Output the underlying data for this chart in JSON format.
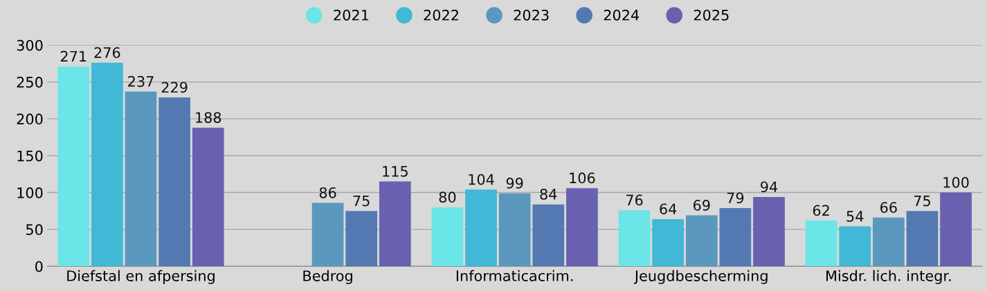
{
  "chart_data": {
    "type": "bar",
    "categories": [
      "Diefstal en afpersing",
      "Bedrog",
      "Informaticacrim.",
      "Jeugdbescherming",
      "Misdr. lich. integr."
    ],
    "series": [
      {
        "name": "2021",
        "color": "#6ce5e8",
        "values": [
          271,
          null,
          80,
          76,
          62
        ]
      },
      {
        "name": "2022",
        "color": "#41b8d5",
        "values": [
          276,
          null,
          104,
          64,
          54
        ]
      },
      {
        "name": "2023",
        "color": "#5a98bd",
        "values": [
          237,
          86,
          99,
          69,
          66
        ]
      },
      {
        "name": "2024",
        "color": "#5479b2",
        "values": [
          229,
          75,
          84,
          79,
          75
        ]
      },
      {
        "name": "2025",
        "color": "#6761b0",
        "values": [
          188,
          115,
          106,
          94,
          100
        ]
      }
    ],
    "ylim": [
      0,
      300
    ],
    "yticks": [
      0,
      50,
      100,
      150,
      200,
      250,
      300
    ],
    "grid": "y",
    "legend": "top",
    "data_labels": true
  }
}
